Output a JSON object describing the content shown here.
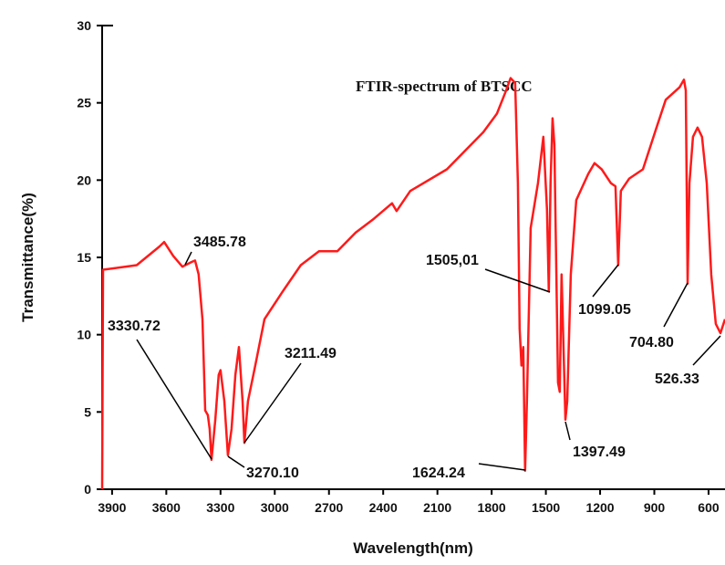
{
  "chart_data": {
    "type": "line",
    "title": "FTIR-spectrum of BTSCC",
    "x_label": "Wavelength(nm)",
    "y_label": "Transmittance(%)",
    "xlim": [
      3955,
      509
    ],
    "ylim": [
      0,
      30
    ],
    "xticks": [
      3900,
      3600,
      3300,
      3000,
      2700,
      2400,
      2100,
      1800,
      1500,
      1200,
      900,
      600
    ],
    "yticks": [
      0,
      5,
      10,
      15,
      20,
      25,
      30
    ],
    "series": [
      {
        "color": "#ff1a1a",
        "x": [
          3955,
          3950,
          3764,
          3638,
          3612,
          3562,
          3511,
          3461,
          3441,
          3421,
          3400,
          3385,
          3370,
          3360,
          3350,
          3329,
          3310,
          3300,
          3279,
          3259,
          3239,
          3218,
          3198,
          3178,
          3168,
          3148,
          3108,
          3057,
          2956,
          2856,
          2755,
          2654,
          2553,
          2452,
          2351,
          2326,
          2250,
          2048,
          1846,
          1771,
          1720,
          1695,
          1670,
          1655,
          1645,
          1635,
          1625,
          1615,
          1605,
          1584,
          1544,
          1514,
          1494,
          1484,
          1474,
          1463,
          1453,
          1433,
          1423,
          1413,
          1392,
          1382,
          1362,
          1332,
          1266,
          1231,
          1191,
          1140,
          1115,
          1100,
          1085,
          1039,
          963,
          888,
          837,
          761,
          736,
          726,
          716,
          706,
          686,
          661,
          636,
          610,
          585,
          560,
          534,
          509
        ],
        "values": [
          0,
          14.2,
          14.5,
          15.7,
          16.0,
          15.1,
          14.4,
          14.7,
          14.8,
          13.9,
          11.0,
          5.1,
          4.8,
          3.9,
          1.9,
          4.5,
          7.4,
          7.7,
          5.7,
          2.2,
          3.9,
          7.4,
          9.2,
          5.7,
          3.0,
          5.7,
          8.0,
          11.0,
          12.8,
          14.5,
          15.4,
          15.4,
          16.6,
          17.5,
          18.5,
          18.0,
          19.3,
          20.7,
          23.1,
          24.3,
          25.8,
          26.6,
          26.3,
          19.8,
          10.4,
          8.0,
          9.2,
          1.2,
          5.7,
          16.9,
          19.8,
          22.8,
          18.1,
          12.8,
          19.8,
          24.0,
          22.3,
          6.9,
          6.3,
          13.9,
          4.5,
          5.7,
          13.9,
          18.7,
          20.4,
          21.1,
          20.7,
          19.8,
          19.6,
          14.5,
          19.3,
          20.1,
          20.7,
          23.4,
          25.2,
          26.0,
          26.5,
          25.8,
          13.3,
          19.8,
          22.8,
          23.4,
          22.8,
          19.8,
          13.9,
          10.7,
          10.1,
          11.0
        ]
      }
    ],
    "annotations": [
      "3485.78",
      "3330.72",
      "3211.49",
      "3270.10",
      "1505,01",
      "1624.24",
      "1397.49",
      "1099.05",
      "704.80",
      "526.33"
    ]
  }
}
